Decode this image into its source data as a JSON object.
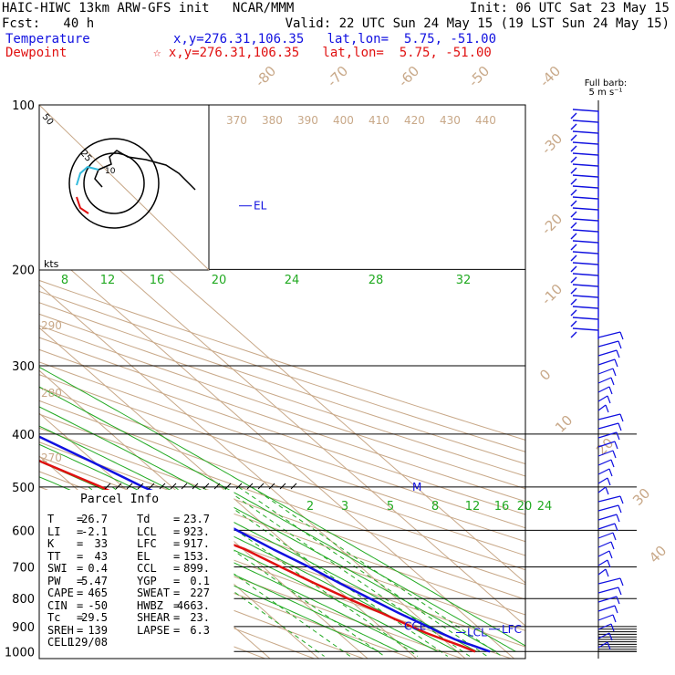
{
  "header": {
    "title_left": "HAIC-HIWC 13km ARW-GFS init   NCAR/MMM",
    "init": "Init: 06 UTC Sat 23 May 15",
    "fcst": "Fcst:   40 h",
    "valid": "Valid: 22 UTC Sun 24 May 15 (19 LST Sun 24 May 15)",
    "temp_label": "Temperature",
    "temp_loc": "x,y=276.31,106.35   lat,lon=  5.75, -51.00",
    "dew_label": "Dewpoint",
    "dew_loc": "☆ x,y=276.31,106.35   lat,lon=  5.75, -51.00"
  },
  "barb_legend": {
    "line1": "Full barb:",
    "line2": "5 m s⁻¹"
  },
  "colors": {
    "temperature": "#1010e0",
    "dewpoint": "#e01010",
    "isotherm": "#c8a888",
    "dry_adiabat": "#c8a888",
    "moist_adiabat": "#22aa22",
    "mixing_ratio": "#22aa22",
    "isobar": "#000000"
  },
  "chart_data": {
    "type": "line",
    "title": "",
    "pressure_levels": [
      100,
      200,
      300,
      400,
      500,
      600,
      700,
      800,
      900,
      1000
    ],
    "isotherm_labels": [
      "-80",
      "-70",
      "-60",
      "-50",
      "-40",
      "-30",
      "-20",
      "-10",
      "0",
      "10",
      "20",
      "30",
      "40"
    ],
    "theta_labels": [
      "370",
      "380",
      "390",
      "400",
      "410",
      "420",
      "430",
      "440"
    ],
    "theta_lower_labels": [
      "290",
      "280",
      "270"
    ],
    "moist_labels_200": [
      "8",
      "12",
      "16",
      "20",
      "24",
      "28",
      "32"
    ],
    "mixing_ratio_labels": [
      "2",
      "3",
      "5",
      "8",
      "12",
      "16",
      "20",
      "24"
    ],
    "series": [
      {
        "name": "Temperature",
        "pressure": [
          1000,
          975,
          950,
          925,
          900,
          850,
          800,
          750,
          700,
          650,
          600,
          550,
          500,
          450,
          400,
          350,
          300,
          250,
          200,
          175,
          150,
          125,
          100
        ],
        "values": [
          26.7,
          24.6,
          22.4,
          21.0,
          19.8,
          17.0,
          14.5,
          11.9,
          9.4,
          6.2,
          3.2,
          0.0,
          -5.9,
          -10.5,
          -16.0,
          -22.7,
          -31.0,
          -40.5,
          -52.0,
          -60.0,
          -69.5,
          -76.5,
          -82.0
        ]
      },
      {
        "name": "Dewpoint",
        "pressure": [
          1000,
          975,
          950,
          925,
          900,
          875,
          850,
          800,
          750,
          700,
          650,
          600,
          550,
          500,
          450,
          400,
          350,
          300,
          280,
          250,
          220,
          200,
          175,
          150,
          125,
          100
        ],
        "values": [
          23.7,
          22.0,
          20.0,
          18.0,
          16.5,
          15.0,
          13.5,
          10.0,
          6.7,
          3.6,
          0.4,
          -5.2,
          -10.0,
          -14.5,
          -20.8,
          -27.0,
          -35.0,
          -48.5,
          -58.0,
          -64.0,
          -73.0,
          -76.8,
          -84.0,
          -88.0,
          -88.0,
          -80.0
        ]
      }
    ],
    "level_labels": [
      {
        "text": "EL",
        "p": 153
      },
      {
        "text": "M",
        "p": 500
      },
      {
        "text": "CCL",
        "p": 899
      },
      {
        "text": "LCL",
        "p": 923
      },
      {
        "text": "LFC",
        "p": 917
      }
    ],
    "hodograph": {
      "ring_labels": [
        "50",
        "25",
        "10"
      ],
      "unit_label": "kts"
    },
    "parcel_info": {
      "heading": "Parcel Info",
      "rows": [
        [
          "T",
          "26.7",
          "Td",
          "23.7"
        ],
        [
          "LI",
          "-2.1",
          "LCL",
          "923."
        ],
        [
          "K",
          "33",
          "LFC",
          "917."
        ],
        [
          "TT",
          "43",
          "EL",
          "153."
        ],
        [
          "SWI",
          "0.4",
          "CCL",
          "899."
        ],
        [
          "PW",
          "5.47",
          "YGP",
          "0.1"
        ],
        [
          "CAPE",
          "465",
          "SWEAT",
          "227"
        ],
        [
          "CIN",
          "-50",
          "HWBZ",
          "4663."
        ],
        [
          "Tc",
          "29.5",
          "SHEAR",
          "23."
        ],
        [
          "SREH",
          "139",
          "LAPSE",
          "6.3"
        ],
        [
          "CELL",
          "129/08",
          "",
          ""
        ]
      ]
    }
  }
}
